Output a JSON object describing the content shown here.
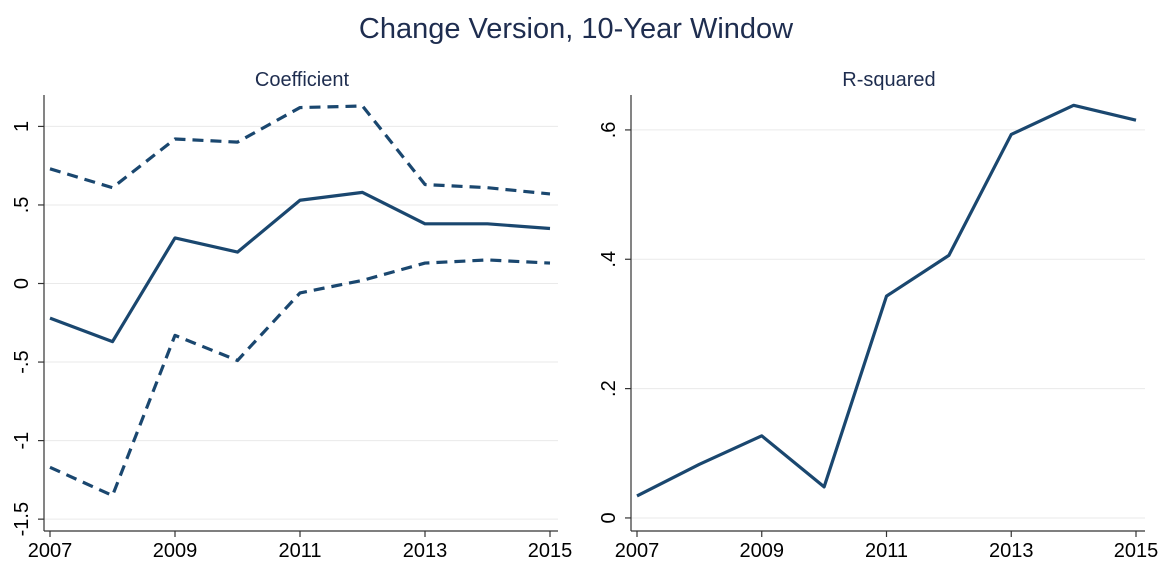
{
  "title": "Change Version, 10-Year Window",
  "chart_data": [
    {
      "type": "line",
      "title": "Coefficient",
      "x": [
        2007,
        2008,
        2009,
        2010,
        2011,
        2012,
        2013,
        2014,
        2015
      ],
      "xlim": [
        2007,
        2015
      ],
      "xticks": [
        2007,
        2009,
        2011,
        2013,
        2015
      ],
      "ylim": [
        -1.55,
        1.2
      ],
      "yticks": [
        {
          "value": -1.5,
          "label": "-1.5"
        },
        -1,
        {
          "value": -0.5,
          "label": "-.5"
        },
        0,
        {
          "value": 0.5,
          "label": ".5"
        },
        1
      ],
      "grid": true,
      "series": [
        {
          "color": "#1a476f",
          "dash": false,
          "values": [
            -0.22,
            -0.37,
            0.29,
            0.2,
            0.53,
            0.58,
            0.38,
            0.38,
            0.35
          ]
        },
        {
          "color": "#1a476f",
          "dash": true,
          "values": [
            0.73,
            0.61,
            0.92,
            0.9,
            1.12,
            1.13,
            0.63,
            0.61,
            0.57
          ]
        },
        {
          "color": "#1a476f",
          "dash": true,
          "values": [
            -1.17,
            -1.35,
            -0.33,
            -0.49,
            -0.06,
            0.02,
            0.13,
            0.15,
            0.13
          ]
        }
      ]
    },
    {
      "type": "line",
      "title": "R-squared",
      "x": [
        2007,
        2008,
        2009,
        2010,
        2011,
        2012,
        2013,
        2014,
        2015
      ],
      "xlim": [
        2007,
        2015
      ],
      "xticks": [
        2007,
        2009,
        2011,
        2013,
        2015
      ],
      "ylim": [
        -0.014,
        0.654
      ],
      "yticks": [
        0,
        {
          "value": 0.2,
          "label": ".2"
        },
        {
          "value": 0.4,
          "label": ".4"
        },
        {
          "value": 0.6,
          "label": ".6"
        }
      ],
      "grid": true,
      "series": [
        {
          "color": "#1a476f",
          "dash": false,
          "values": [
            0.034,
            0.083,
            0.127,
            0.048,
            0.343,
            0.406,
            0.593,
            0.638,
            0.615
          ]
        }
      ]
    }
  ]
}
